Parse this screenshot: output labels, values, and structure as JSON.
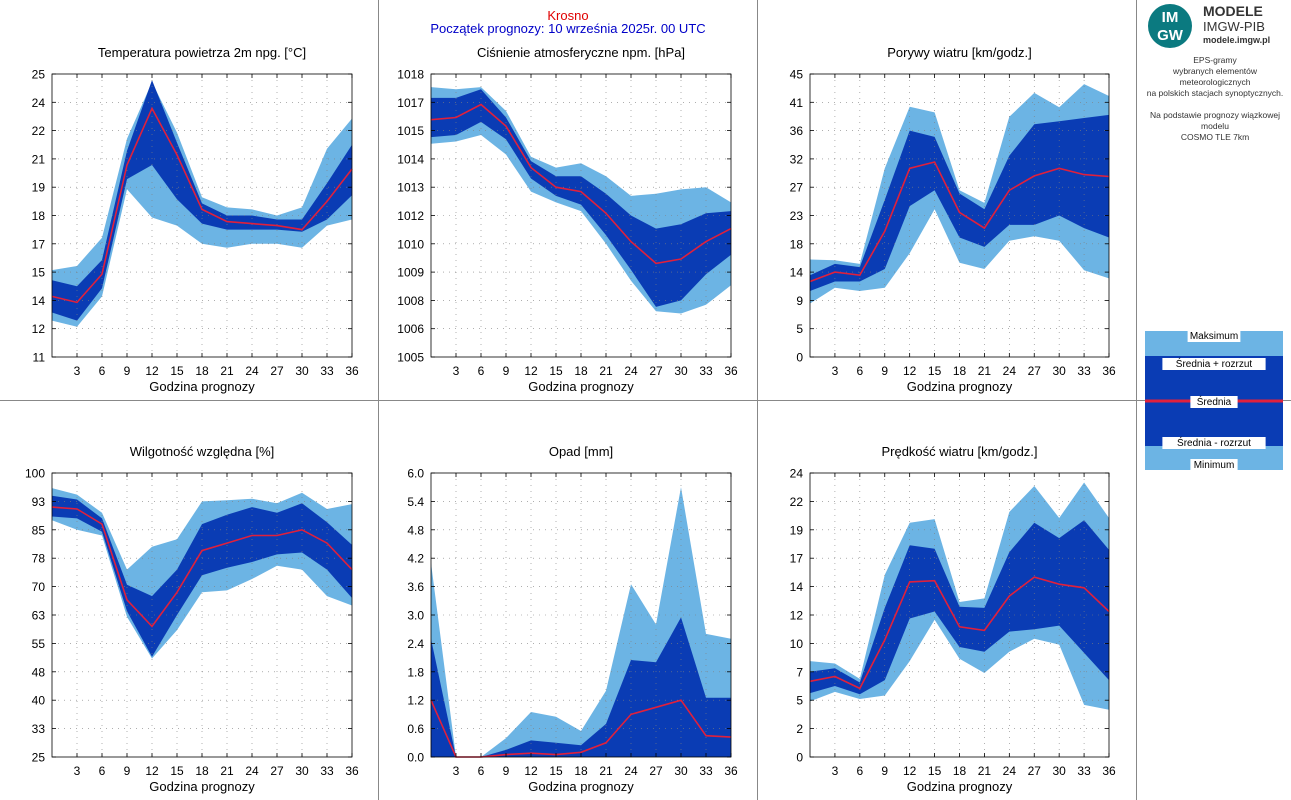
{
  "header": {
    "station": "Krosno",
    "forecast_start": "Początek prognozy: 10 września 2025r. 00 UTC"
  },
  "logo": {
    "mark_top": "IM",
    "mark_bottom": "GW",
    "brand": "MODELE",
    "org": "IMGW-PIB",
    "url": "modele.imgw.pl",
    "color": "#0b7a80"
  },
  "info": {
    "line1": "EPS-gramy",
    "line2": "wybranych elementów meteorologicznych",
    "line3": "na polskich stacjach synoptycznych.",
    "line4": "Na podstawie prognozy wiązkowej modelu",
    "line5": "COSMO TLE 7km"
  },
  "legend": {
    "max_label": "Maksimum",
    "mean_plus_label": "Średnia + rozrzut",
    "mean_label": "Średnia",
    "mean_minus_label": "Średnia - rozrzut",
    "min_label": "Minimum"
  },
  "colors": {
    "outer_band": "#6cb4e4",
    "inner_band": "#0a3cb4",
    "mean_line": "#e0203c",
    "station_text": "#e00000",
    "start_text": "#0000c8"
  },
  "chart_data": [
    {
      "type": "area",
      "title": "Temperatura powietrza 2m npg. [°C]",
      "xlabel": "Godzina prognozy",
      "ylabel": "",
      "x": [
        0,
        3,
        6,
        9,
        12,
        15,
        18,
        21,
        24,
        27,
        30,
        33,
        36
      ],
      "xticks": [
        "3",
        "6",
        "9",
        "12",
        "15",
        "18",
        "21",
        "24",
        "27",
        "30",
        "33",
        "36"
      ],
      "yticks": [
        "11",
        "12",
        "14",
        "15",
        "17",
        "18",
        "19",
        "21",
        "22",
        "24",
        "25"
      ],
      "ylim": [
        11,
        25
      ],
      "grid": true,
      "series": [
        {
          "name": "Maksimum",
          "values": [
            15.3,
            15.5,
            16.9,
            21.8,
            24.6,
            22.1,
            18.9,
            18.4,
            18.3,
            18.0,
            18.4,
            21.3,
            22.8
          ]
        },
        {
          "name": "Średnia + rozrzut",
          "values": [
            14.8,
            14.5,
            15.8,
            21.2,
            24.7,
            21.6,
            18.6,
            18.0,
            18.0,
            17.8,
            17.8,
            19.6,
            21.5
          ]
        },
        {
          "name": "Średnia",
          "values": [
            14.0,
            13.7,
            15.1,
            20.5,
            23.3,
            21.0,
            18.3,
            17.7,
            17.6,
            17.5,
            17.3,
            18.7,
            20.3
          ]
        },
        {
          "name": "Średnia - rozrzut",
          "values": [
            13.2,
            12.8,
            14.4,
            19.8,
            20.5,
            18.8,
            17.6,
            17.3,
            17.3,
            17.3,
            17.2,
            17.8,
            19.0
          ]
        },
        {
          "name": "Minimum",
          "values": [
            12.8,
            12.5,
            14.0,
            19.3,
            17.9,
            17.5,
            16.6,
            16.4,
            16.6,
            16.6,
            16.4,
            17.5,
            17.8
          ]
        }
      ]
    },
    {
      "type": "area",
      "title": "Ciśnienie atmosferyczne npm. [hPa]",
      "xlabel": "Godzina prognozy",
      "ylabel": "",
      "x": [
        0,
        3,
        6,
        9,
        12,
        15,
        18,
        21,
        24,
        27,
        30,
        33,
        36
      ],
      "xticks": [
        "3",
        "6",
        "9",
        "12",
        "15",
        "18",
        "21",
        "24",
        "27",
        "30",
        "33",
        "36"
      ],
      "yticks": [
        "1005",
        "1006",
        "1008",
        "1009",
        "1010",
        "1012",
        "1013",
        "1014",
        "1015",
        "1017",
        "1018"
      ],
      "ylim": [
        1005,
        1018
      ],
      "grid": true,
      "series": [
        {
          "name": "Maksimum",
          "values": [
            1017.4,
            1017.3,
            1017.4,
            1016.3,
            1014.2,
            1013.7,
            1013.9,
            1013.3,
            1012.4,
            1012.5,
            1012.7,
            1012.8,
            1012.1
          ]
        },
        {
          "name": "Średnia + rozrzut",
          "values": [
            1016.9,
            1016.9,
            1017.3,
            1016.0,
            1014.0,
            1013.3,
            1013.3,
            1012.5,
            1011.5,
            1010.9,
            1011.1,
            1011.6,
            1011.7
          ]
        },
        {
          "name": "Średnia",
          "values": [
            1015.9,
            1016.0,
            1016.6,
            1015.6,
            1013.7,
            1012.8,
            1012.6,
            1011.6,
            1010.3,
            1009.3,
            1009.5,
            1010.3,
            1010.9
          ]
        },
        {
          "name": "Średnia - rozrzut",
          "values": [
            1015.1,
            1015.2,
            1015.8,
            1015.0,
            1013.2,
            1012.4,
            1012.0,
            1010.6,
            1009.0,
            1007.3,
            1007.6,
            1008.8,
            1009.7
          ]
        },
        {
          "name": "Minimum",
          "values": [
            1014.8,
            1014.9,
            1015.2,
            1014.3,
            1012.6,
            1012.1,
            1011.7,
            1010.2,
            1008.5,
            1007.1,
            1007.0,
            1007.4,
            1008.3
          ]
        }
      ]
    },
    {
      "type": "area",
      "title": "Porywy wiatru [km/godz.]",
      "xlabel": "Godzina prognozy",
      "ylabel": "",
      "x": [
        0,
        3,
        6,
        9,
        12,
        15,
        18,
        21,
        24,
        27,
        30,
        33,
        36
      ],
      "xticks": [
        "3",
        "6",
        "9",
        "12",
        "15",
        "18",
        "21",
        "24",
        "27",
        "30",
        "33",
        "36"
      ],
      "yticks": [
        "0",
        "5",
        "9",
        "14",
        "18",
        "23",
        "27",
        "32",
        "36",
        "41",
        "45"
      ],
      "ylim": [
        0,
        45
      ],
      "grid": true,
      "series": [
        {
          "name": "Maksimum",
          "values": [
            15.5,
            15.4,
            14.8,
            30.0,
            39.8,
            38.9,
            26.5,
            24.5,
            38.2,
            42.0,
            39.7,
            43.4,
            41.5
          ]
        },
        {
          "name": "Średnia + rozrzut",
          "values": [
            13.0,
            14.8,
            14.3,
            25.0,
            36.0,
            35.0,
            26.0,
            23.5,
            32.0,
            37.0,
            37.5,
            38.0,
            38.5
          ]
        },
        {
          "name": "Średnia",
          "values": [
            12.0,
            13.5,
            13.0,
            20.0,
            30.0,
            31.0,
            23.0,
            20.5,
            26.5,
            28.8,
            30.0,
            29.0,
            28.7
          ]
        },
        {
          "name": "Średnia - rozrzut",
          "values": [
            10.5,
            12.0,
            12.0,
            14.0,
            24.0,
            26.5,
            19.0,
            17.5,
            21.0,
            21.0,
            22.5,
            20.5,
            19.0
          ]
        },
        {
          "name": "Minimum",
          "values": [
            8.5,
            11.0,
            10.5,
            11.0,
            16.5,
            23.5,
            15.0,
            14.0,
            18.5,
            19.2,
            18.5,
            13.8,
            12.5
          ]
        }
      ]
    },
    {
      "type": "area",
      "title": "Wilgotność względna [%]",
      "xlabel": "Godzina prognozy",
      "ylabel": "",
      "x": [
        0,
        3,
        6,
        9,
        12,
        15,
        18,
        21,
        24,
        27,
        30,
        33,
        36
      ],
      "xticks": [
        "3",
        "6",
        "9",
        "12",
        "15",
        "18",
        "21",
        "24",
        "27",
        "30",
        "33",
        "36"
      ],
      "yticks": [
        "25",
        "33",
        "40",
        "48",
        "55",
        "63",
        "70",
        "78",
        "85",
        "93",
        "100"
      ],
      "ylim": [
        25,
        100
      ],
      "grid": true,
      "series": [
        {
          "name": "Maksimum",
          "values": [
            96.0,
            94.3,
            89.5,
            74.5,
            80.5,
            82.5,
            92.5,
            92.8,
            93.2,
            92.0,
            94.8,
            90.5,
            91.8
          ]
        },
        {
          "name": "Średnia + rozrzut",
          "values": [
            94.0,
            93.0,
            88.0,
            70.5,
            67.5,
            74.5,
            86.5,
            89.0,
            91.0,
            89.5,
            92.0,
            87.0,
            81.0
          ]
        },
        {
          "name": "Średnia",
          "values": [
            91.0,
            90.5,
            86.5,
            66.5,
            59.5,
            68.5,
            79.5,
            81.5,
            83.5,
            83.5,
            85.0,
            81.5,
            74.5
          ]
        },
        {
          "name": "Średnia - rozrzut",
          "values": [
            88.5,
            88.0,
            84.5,
            63.5,
            51.5,
            62.5,
            73.0,
            75.0,
            76.5,
            78.5,
            79.0,
            74.5,
            67.0
          ]
        },
        {
          "name": "Minimum",
          "values": [
            87.5,
            85.0,
            83.5,
            62.0,
            51.0,
            58.5,
            68.5,
            69.0,
            72.0,
            75.5,
            74.5,
            67.5,
            65.0
          ]
        }
      ]
    },
    {
      "type": "area",
      "title": "Opad [mm]",
      "xlabel": "Godzina prognozy",
      "ylabel": "",
      "x": [
        0,
        3,
        6,
        9,
        12,
        15,
        18,
        21,
        24,
        27,
        30,
        33,
        36
      ],
      "xticks": [
        "3",
        "6",
        "9",
        "12",
        "15",
        "18",
        "21",
        "24",
        "27",
        "30",
        "33",
        "36"
      ],
      "yticks": [
        "0.0",
        "0.6",
        "1.2",
        "1.8",
        "2.4",
        "3.0",
        "3.6",
        "4.2",
        "4.8",
        "5.4",
        "6.0"
      ],
      "ylim": [
        0,
        6
      ],
      "grid": true,
      "series": [
        {
          "name": "Maksimum",
          "values": [
            4.1,
            0.0,
            0.0,
            0.4,
            0.95,
            0.85,
            0.55,
            1.4,
            3.65,
            2.8,
            5.7,
            2.6,
            2.5
          ]
        },
        {
          "name": "Średnia + rozrzut",
          "values": [
            2.5,
            0.0,
            0.0,
            0.15,
            0.35,
            0.3,
            0.25,
            0.7,
            2.05,
            2.0,
            2.95,
            1.25,
            1.25
          ]
        },
        {
          "name": "Średnia",
          "values": [
            1.2,
            0.0,
            0.0,
            0.05,
            0.08,
            0.05,
            0.1,
            0.3,
            0.9,
            1.05,
            1.2,
            0.45,
            0.42
          ]
        },
        {
          "name": "Średnia - rozrzut",
          "values": [
            0.0,
            0.0,
            0.0,
            0.0,
            0.0,
            0.0,
            0.0,
            0.0,
            0.0,
            0.0,
            0.0,
            0.0,
            0.0
          ]
        },
        {
          "name": "Minimum",
          "values": [
            0.0,
            0.0,
            0.0,
            0.0,
            0.0,
            0.0,
            0.0,
            0.0,
            0.0,
            0.1,
            0.0,
            0.0,
            0.0
          ]
        }
      ]
    },
    {
      "type": "area",
      "title": "Prędkość wiatru [km/godz.]",
      "xlabel": "Godzina prognozy",
      "ylabel": "",
      "x": [
        0,
        3,
        6,
        9,
        12,
        15,
        18,
        21,
        24,
        27,
        30,
        33,
        36
      ],
      "xticks": [
        "3",
        "6",
        "9",
        "12",
        "15",
        "18",
        "21",
        "24",
        "27",
        "30",
        "33",
        "36"
      ],
      "yticks": [
        "0",
        "2",
        "5",
        "7",
        "10",
        "12",
        "14",
        "17",
        "19",
        "22",
        "24"
      ],
      "ylim": [
        0,
        24
      ],
      "grid": true,
      "series": [
        {
          "name": "Maksimum",
          "values": [
            8.1,
            7.9,
            6.6,
            15.4,
            19.8,
            20.1,
            13.1,
            13.4,
            20.7,
            22.9,
            20.2,
            23.2,
            20.2
          ]
        },
        {
          "name": "Średnia + rozrzut",
          "values": [
            7.2,
            7.5,
            6.3,
            12.6,
            17.9,
            17.6,
            12.7,
            12.6,
            17.3,
            19.8,
            18.5,
            20.0,
            17.5
          ]
        },
        {
          "name": "Średnia",
          "values": [
            6.4,
            6.8,
            5.8,
            9.9,
            14.8,
            14.9,
            11.0,
            10.7,
            13.6,
            15.2,
            14.6,
            14.3,
            12.3
          ]
        },
        {
          "name": "Średnia - rozrzut",
          "values": [
            5.4,
            6.0,
            5.3,
            6.5,
            11.7,
            12.3,
            9.3,
            8.9,
            10.6,
            10.8,
            11.1,
            8.8,
            6.5
          ]
        },
        {
          "name": "Minimum",
          "values": [
            4.7,
            5.5,
            4.9,
            5.2,
            8.1,
            11.6,
            8.3,
            7.1,
            8.9,
            10.0,
            9.5,
            4.4,
            4.0
          ]
        }
      ]
    }
  ]
}
